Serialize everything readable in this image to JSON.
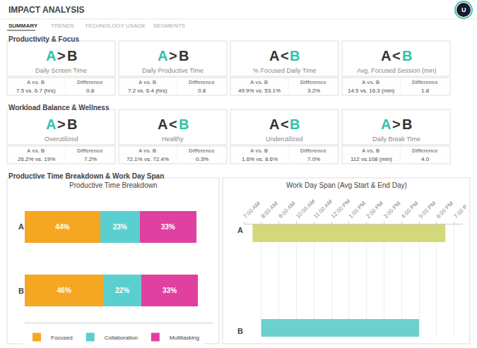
{
  "chart_data": [
    {
      "type": "bar",
      "orientation": "horizontal",
      "stacked": true,
      "title": "Productive Time Breakdown",
      "categories": [
        "B",
        "A"
      ],
      "series": [
        {
          "name": "Focused",
          "color": "#F5A623",
          "values": [
            46,
            44
          ],
          "value_labels": [
            "46%",
            "44%"
          ]
        },
        {
          "name": "Collaboration",
          "color": "#5BCFCF",
          "values": [
            22,
            23
          ],
          "value_labels": [
            "22%",
            "23%"
          ]
        },
        {
          "name": "Multitasking",
          "color": "#E040A0",
          "values": [
            33,
            33
          ],
          "value_labels": [
            "33%",
            "33%"
          ]
        }
      ],
      "xlim": [
        0,
        110
      ],
      "data_labels": true,
      "tick_labels": "y",
      "legend": "bottom",
      "grid": false,
      "annotations": [
        {
          "text": "IMPACT ANALYSIS"
        },
        {
          "text": "U",
          "color": "#2EC4A5"
        },
        {
          "text": "SUMMARY"
        },
        {
          "text": "TRENDS"
        },
        {
          "text": "TECHNOLOGY USAGE"
        },
        {
          "text": "SEGMENTS"
        },
        {
          "text": "Productivity & Focus"
        },
        {
          "text": "A > B",
          "colors": [
            "#2EC4A5",
            "#333333",
            "#333333"
          ]
        },
        {
          "text": "Daily Screen Time"
        },
        {
          "text": "A vs. B"
        },
        {
          "text": "7.5 vs. 6.7 (hrs)"
        },
        {
          "text": "Difference"
        },
        {
          "text": "0.8"
        },
        {
          "text": "A > B",
          "colors": [
            "#2EC4A5",
            "#333333",
            "#333333"
          ]
        },
        {
          "text": "Daily Productive Time"
        },
        {
          "text": "A vs. B"
        },
        {
          "text": "7.2 vs. 6.4 (hrs)"
        },
        {
          "text": "Difference"
        },
        {
          "text": "0.8"
        },
        {
          "text": "A < B",
          "colors": [
            "#333333",
            "#333333",
            "#2EC4A5"
          ]
        },
        {
          "text": "% Focused Daily Time"
        },
        {
          "text": "A vs. B"
        },
        {
          "text": "49.9% vs. 53.1%"
        },
        {
          "text": "Difference"
        },
        {
          "text": "3.2%"
        },
        {
          "text": "A < B",
          "colors": [
            "#333333",
            "#333333",
            "#2EC4A5"
          ]
        },
        {
          "text": "Avg. Focused Session (min)"
        },
        {
          "text": "A vs. B"
        },
        {
          "text": "14.5 vs. 16.3 (min)"
        },
        {
          "text": "Difference"
        },
        {
          "text": "1.8"
        },
        {
          "text": "Workload Balance & Wellness"
        },
        {
          "text": "A > B",
          "colors": [
            "#2EC4A5",
            "#333333",
            "#333333"
          ]
        },
        {
          "text": "Overutilized"
        },
        {
          "text": "A vs. B"
        },
        {
          "text": "26.2% vs. 19%"
        },
        {
          "text": "Difference"
        },
        {
          "text": "7.2%"
        },
        {
          "text": "A < B",
          "colors": [
            "#333333",
            "#333333",
            "#2EC4A5"
          ]
        },
        {
          "text": "Healthy"
        },
        {
          "text": "A vs. B"
        },
        {
          "text": "72.1% vs. 72.4%"
        },
        {
          "text": "Difference"
        },
        {
          "text": "0.3%"
        },
        {
          "text": "A < B",
          "colors": [
            "#333333",
            "#333333",
            "#2EC4A5"
          ]
        },
        {
          "text": "Underutilized"
        },
        {
          "text": "A vs. B"
        },
        {
          "text": "1.6% vs. 8.6%"
        },
        {
          "text": "Difference"
        },
        {
          "text": "7.0%"
        },
        {
          "text": "A > B",
          "colors": [
            "#2EC4A5",
            "#333333",
            "#333333"
          ]
        },
        {
          "text": "Daily Break Time"
        },
        {
          "text": "A vs. B"
        },
        {
          "text": "112 vs.108 (min)"
        },
        {
          "text": "Difference"
        },
        {
          "text": "4.0"
        },
        {
          "text": "Productive Time Breakdown & Work Day Span"
        }
      ]
    },
    {
      "type": "bar",
      "orientation": "horizontal",
      "title": "Work Day Span (Avg Start & End Day)",
      "categories": [
        "B",
        "A"
      ],
      "start": [
        8.0,
        7.5
      ],
      "end": [
        17.0,
        18.5
      ],
      "colors": [
        "#6ECFCF",
        "#D4D87A"
      ],
      "xlim": [
        7,
        19.5
      ],
      "xticks": [
        {
          "value": 7,
          "label": "7:00 AM"
        },
        {
          "value": 8,
          "label": "8:00 AM"
        },
        {
          "value": 9,
          "label": "9:00 AM"
        },
        {
          "value": 10,
          "label": "10:00 AM"
        },
        {
          "value": 11,
          "label": "11:00 AM"
        },
        {
          "value": 12,
          "label": "12:00 PM"
        },
        {
          "value": 13,
          "label": "1:00 PM"
        },
        {
          "value": 14,
          "label": "2:00 PM"
        },
        {
          "value": 15,
          "label": "3:00 PM"
        },
        {
          "value": 16,
          "label": "4:00 PM"
        },
        {
          "value": 17,
          "label": "5:00 PM"
        },
        {
          "value": 18,
          "label": "6:00 PM"
        },
        {
          "value": 19,
          "label": "7:00 P"
        }
      ],
      "grid": true
    }
  ]
}
